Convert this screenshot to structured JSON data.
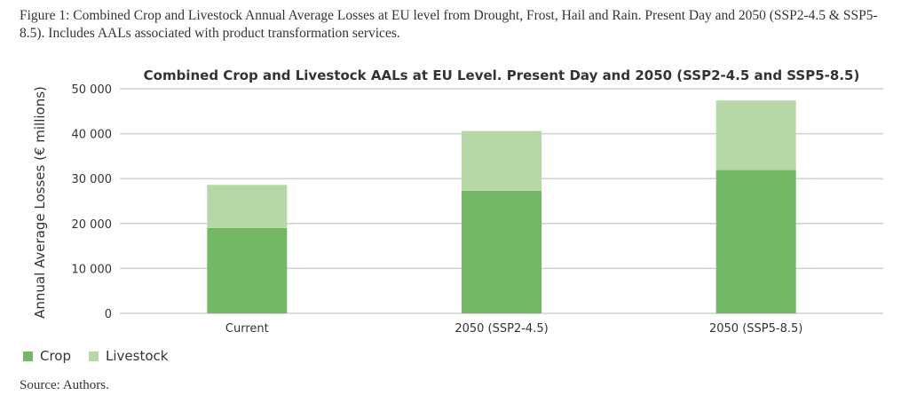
{
  "caption": "Figure 1: Combined Crop and Livestock Annual Average Losses at EU level from Drought, Frost, Hail and Rain. Present Day and 2050 (SSP2-4.5 & SSP5-8.5). Includes AALs associated with product transformation services.",
  "source": "Source: Authors.",
  "chart_data": {
    "type": "bar",
    "stacked": true,
    "title": "Combined Crop and Livestock AALs at EU Level. Present Day and 2050 (SSP2-4.5 and SSP5-8.5)",
    "xlabel": "",
    "ylabel": "Annual Average Losses (€ millions)",
    "ylim": [
      0,
      50000
    ],
    "yticks": [
      0,
      10000,
      20000,
      30000,
      40000,
      50000
    ],
    "ytick_labels": [
      "0",
      "10 000",
      "20 000",
      "30 000",
      "40 000",
      "50 000"
    ],
    "grid": true,
    "legend": "bottom-left",
    "categories": [
      "Current",
      "2050 (SSP2-4.5)",
      "2050 (SSP5-8.5)"
    ],
    "series": [
      {
        "name": "Crop",
        "color": "#72b865",
        "values": [
          19000,
          27300,
          31900
        ]
      },
      {
        "name": "Livestock",
        "color": "#b5d8a6",
        "values": [
          9600,
          13300,
          15500
        ]
      }
    ]
  }
}
